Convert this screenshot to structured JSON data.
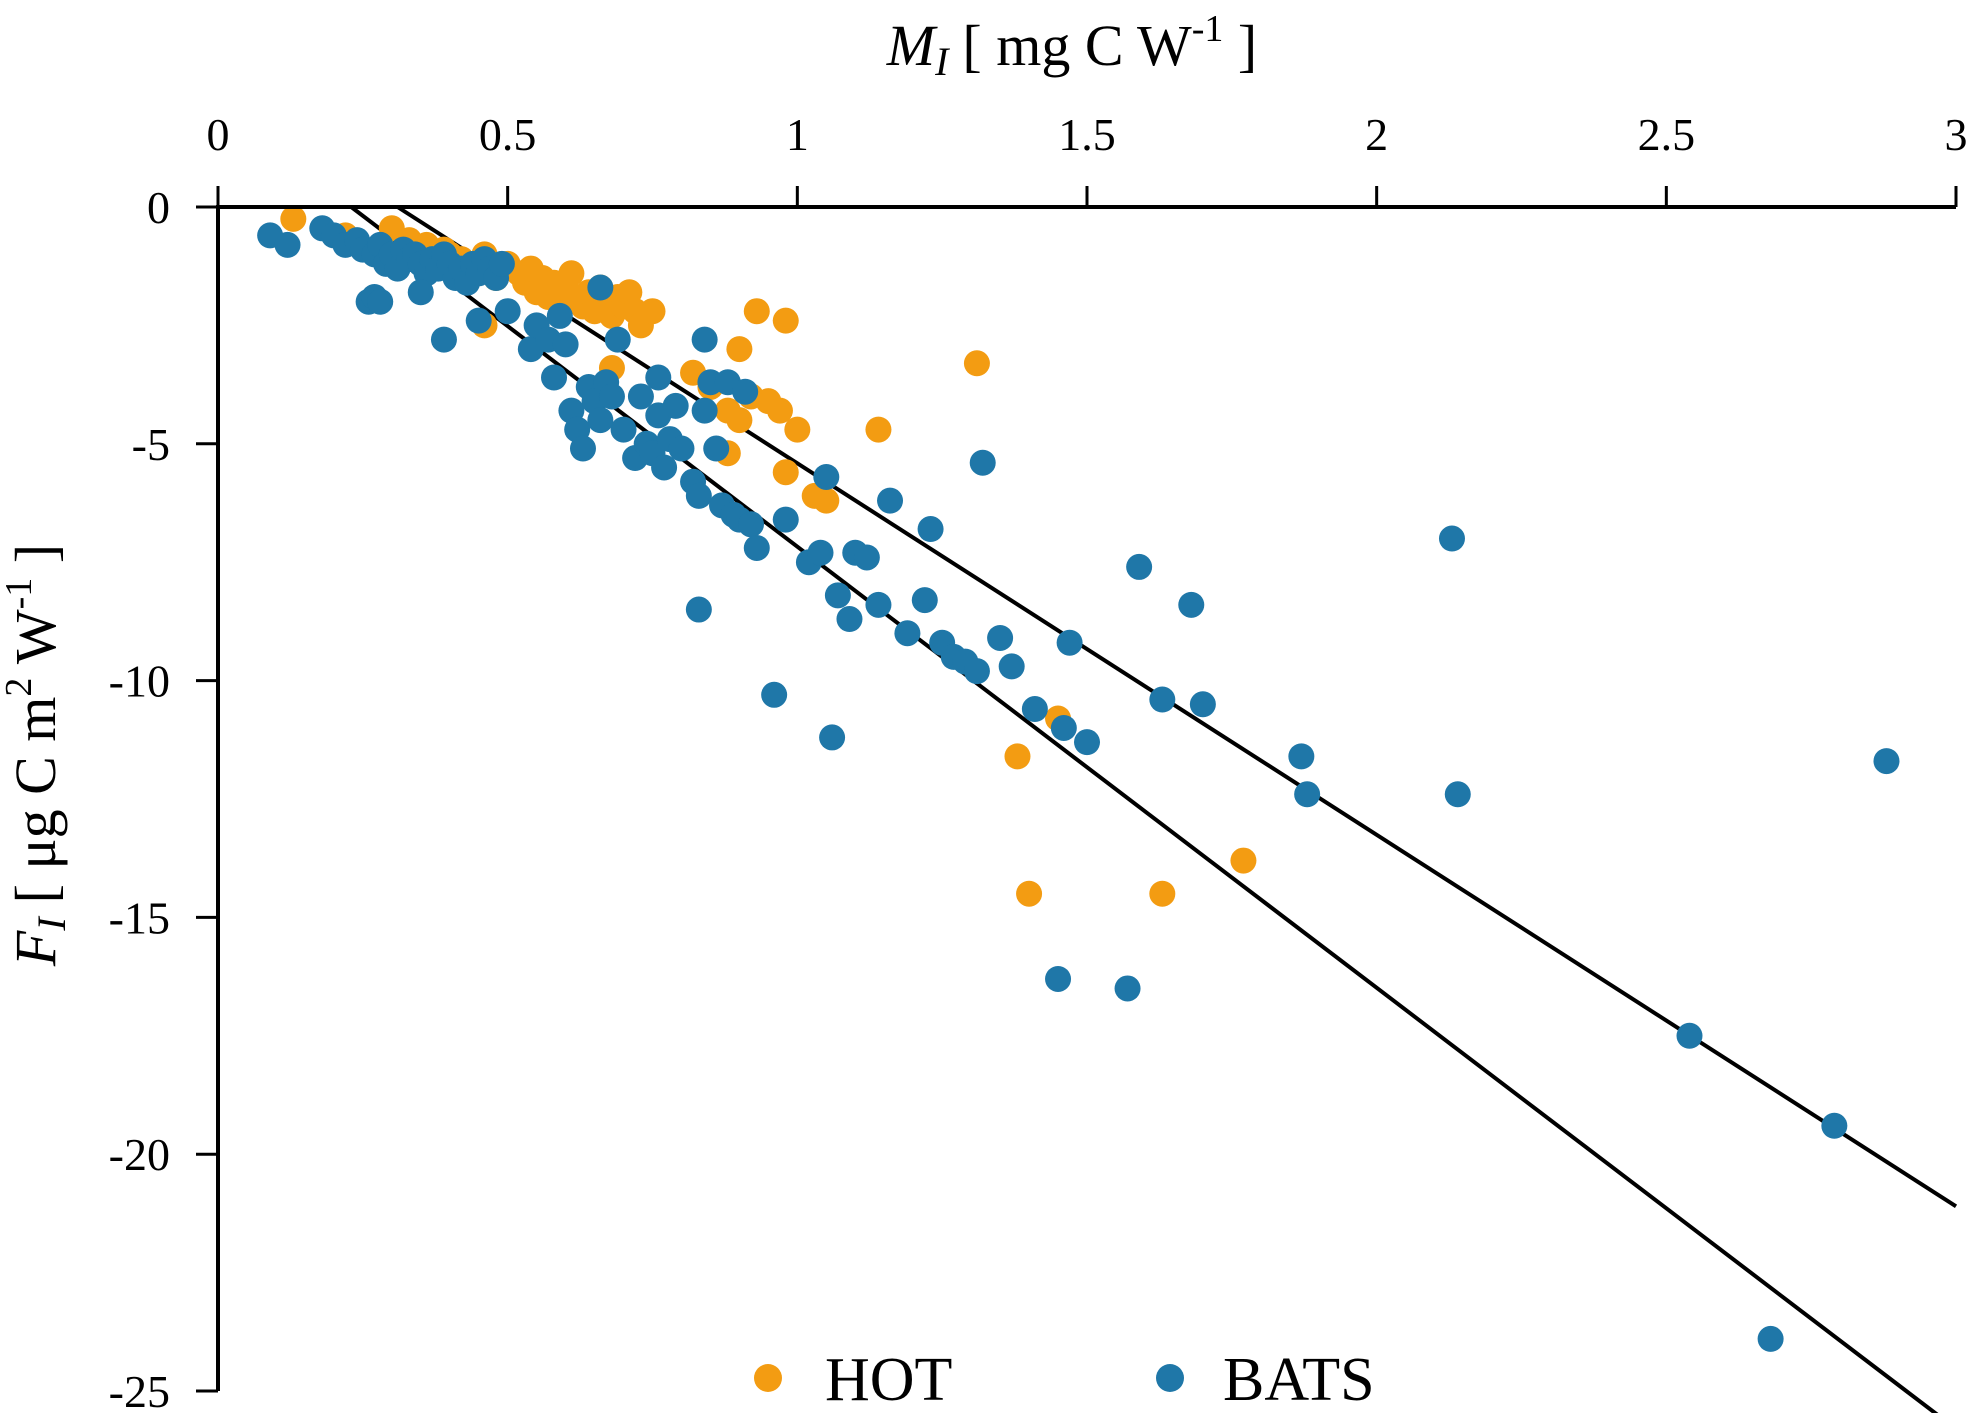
{
  "chart_data": {
    "type": "scatter",
    "xlabel": {
      "main": "M",
      "sub": "I",
      "unit_pre": "[ mg C W",
      "unit_sup": "-1",
      "unit_post": " ]"
    },
    "ylabel": {
      "main": "F",
      "sub": "I",
      "unit_pre": "[ μg C m",
      "unit_sup1": "2",
      "unit_mid": " W",
      "unit_sup2": "-1",
      "unit_post": " ]"
    },
    "x_axis_position": "top",
    "xlim": [
      0,
      3
    ],
    "ylim": [
      -25,
      0
    ],
    "x_ticks": [
      0,
      0.5,
      1,
      1.5,
      2,
      2.5,
      3
    ],
    "x_tick_labels": [
      "0",
      "0.5",
      "1",
      "1.5",
      "2",
      "2.5",
      "3"
    ],
    "y_ticks": [
      0,
      -5,
      -10,
      -15,
      -20,
      -25
    ],
    "y_tick_labels": [
      "0",
      "-5",
      "-10",
      "-15",
      "-20",
      "-25"
    ],
    "legend_position": "bottom-center",
    "colors": {
      "HOT": "#F39C12",
      "BATS": "#1F77A8"
    },
    "series": [
      {
        "name": "HOT",
        "color": "#F39C12",
        "points": [
          [
            0.13,
            -0.25
          ],
          [
            0.22,
            -0.6
          ],
          [
            0.3,
            -0.45
          ],
          [
            0.33,
            -0.7
          ],
          [
            0.36,
            -0.8
          ],
          [
            0.39,
            -0.9
          ],
          [
            0.4,
            -1.0
          ],
          [
            0.42,
            -1.1
          ],
          [
            0.44,
            -1.2
          ],
          [
            0.46,
            -1.0
          ],
          [
            0.47,
            -1.3
          ],
          [
            0.48,
            -1.5
          ],
          [
            0.5,
            -1.2
          ],
          [
            0.52,
            -1.4
          ],
          [
            0.53,
            -1.6
          ],
          [
            0.54,
            -1.3
          ],
          [
            0.55,
            -1.8
          ],
          [
            0.56,
            -1.5
          ],
          [
            0.57,
            -1.9
          ],
          [
            0.58,
            -1.6
          ],
          [
            0.59,
            -2.0
          ],
          [
            0.6,
            -1.7
          ],
          [
            0.61,
            -1.4
          ],
          [
            0.62,
            -1.9
          ],
          [
            0.63,
            -2.1
          ],
          [
            0.64,
            -1.8
          ],
          [
            0.65,
            -2.2
          ],
          [
            0.66,
            -1.7
          ],
          [
            0.67,
            -2.0
          ],
          [
            0.68,
            -2.3
          ],
          [
            0.69,
            -1.9
          ],
          [
            0.7,
            -2.1
          ],
          [
            0.71,
            -1.8
          ],
          [
            0.72,
            -2.2
          ],
          [
            0.73,
            -2.5
          ],
          [
            0.75,
            -2.2
          ],
          [
            0.46,
            -2.5
          ],
          [
            0.68,
            -3.4
          ],
          [
            0.82,
            -3.5
          ],
          [
            0.85,
            -3.8
          ],
          [
            0.88,
            -4.3
          ],
          [
            0.9,
            -4.5
          ],
          [
            0.92,
            -4.0
          ],
          [
            0.95,
            -4.1
          ],
          [
            0.97,
            -4.3
          ],
          [
            1.0,
            -4.7
          ],
          [
            0.98,
            -5.6
          ],
          [
            1.03,
            -6.1
          ],
          [
            1.05,
            -6.2
          ],
          [
            0.93,
            -2.2
          ],
          [
            0.98,
            -2.4
          ],
          [
            0.9,
            -3.0
          ],
          [
            0.88,
            -5.2
          ],
          [
            1.14,
            -4.7
          ],
          [
            1.31,
            -3.3
          ],
          [
            1.38,
            -11.6
          ],
          [
            1.45,
            -10.8
          ],
          [
            1.4,
            -14.5
          ],
          [
            1.63,
            -14.5
          ],
          [
            1.77,
            -13.8
          ]
        ]
      },
      {
        "name": "BATS",
        "color": "#1F77A8",
        "points": [
          [
            0.09,
            -0.6
          ],
          [
            0.12,
            -0.8
          ],
          [
            0.18,
            -0.45
          ],
          [
            0.2,
            -0.6
          ],
          [
            0.22,
            -0.8
          ],
          [
            0.24,
            -0.7
          ],
          [
            0.25,
            -0.9
          ],
          [
            0.27,
            -1.0
          ],
          [
            0.28,
            -0.8
          ],
          [
            0.29,
            -1.2
          ],
          [
            0.3,
            -1.0
          ],
          [
            0.31,
            -1.3
          ],
          [
            0.32,
            -0.9
          ],
          [
            0.33,
            -1.1
          ],
          [
            0.34,
            -1.0
          ],
          [
            0.35,
            -1.2
          ],
          [
            0.36,
            -1.4
          ],
          [
            0.37,
            -1.1
          ],
          [
            0.38,
            -1.3
          ],
          [
            0.39,
            -1.0
          ],
          [
            0.4,
            -1.2
          ],
          [
            0.41,
            -1.5
          ],
          [
            0.42,
            -1.3
          ],
          [
            0.43,
            -1.6
          ],
          [
            0.44,
            -1.2
          ],
          [
            0.45,
            -1.4
          ],
          [
            0.46,
            -1.1
          ],
          [
            0.47,
            -1.3
          ],
          [
            0.48,
            -1.5
          ],
          [
            0.49,
            -1.2
          ],
          [
            0.26,
            -2.0
          ],
          [
            0.27,
            -1.9
          ],
          [
            0.28,
            -2.0
          ],
          [
            0.35,
            -1.8
          ],
          [
            0.39,
            -2.8
          ],
          [
            0.45,
            -2.4
          ],
          [
            0.5,
            -2.2
          ],
          [
            0.54,
            -3.0
          ],
          [
            0.55,
            -2.5
          ],
          [
            0.57,
            -2.8
          ],
          [
            0.59,
            -2.3
          ],
          [
            0.6,
            -2.9
          ],
          [
            0.58,
            -3.6
          ],
          [
            0.61,
            -4.3
          ],
          [
            0.62,
            -4.7
          ],
          [
            0.63,
            -5.1
          ],
          [
            0.64,
            -3.8
          ],
          [
            0.65,
            -4.1
          ],
          [
            0.66,
            -4.5
          ],
          [
            0.67,
            -3.7
          ],
          [
            0.68,
            -4.0
          ],
          [
            0.69,
            -2.8
          ],
          [
            0.7,
            -4.7
          ],
          [
            0.72,
            -5.3
          ],
          [
            0.73,
            -4.0
          ],
          [
            0.74,
            -5.0
          ],
          [
            0.75,
            -5.2
          ],
          [
            0.76,
            -4.4
          ],
          [
            0.77,
            -5.5
          ],
          [
            0.78,
            -4.9
          ],
          [
            0.79,
            -4.2
          ],
          [
            0.8,
            -5.1
          ],
          [
            0.82,
            -5.8
          ],
          [
            0.83,
            -6.1
          ],
          [
            0.84,
            -4.3
          ],
          [
            0.85,
            -3.7
          ],
          [
            0.86,
            -5.1
          ],
          [
            0.87,
            -6.3
          ],
          [
            0.88,
            -3.7
          ],
          [
            0.89,
            -6.5
          ],
          [
            0.9,
            -6.6
          ],
          [
            0.91,
            -3.9
          ],
          [
            0.92,
            -6.7
          ],
          [
            0.93,
            -7.2
          ],
          [
            0.84,
            -2.8
          ],
          [
            0.76,
            -3.6
          ],
          [
            0.66,
            -1.7
          ],
          [
            0.83,
            -8.5
          ],
          [
            0.96,
            -10.3
          ],
          [
            0.98,
            -6.6
          ],
          [
            1.02,
            -7.5
          ],
          [
            1.04,
            -7.3
          ],
          [
            1.05,
            -5.7
          ],
          [
            1.06,
            -11.2
          ],
          [
            1.07,
            -8.2
          ],
          [
            1.09,
            -8.7
          ],
          [
            1.1,
            -7.3
          ],
          [
            1.12,
            -7.4
          ],
          [
            1.14,
            -8.4
          ],
          [
            1.16,
            -6.2
          ],
          [
            1.19,
            -9.0
          ],
          [
            1.22,
            -8.3
          ],
          [
            1.23,
            -6.8
          ],
          [
            1.25,
            -9.2
          ],
          [
            1.27,
            -9.5
          ],
          [
            1.29,
            -9.6
          ],
          [
            1.31,
            -9.8
          ],
          [
            1.32,
            -5.4
          ],
          [
            1.35,
            -9.1
          ],
          [
            1.37,
            -9.7
          ],
          [
            1.41,
            -10.6
          ],
          [
            1.46,
            -11.0
          ],
          [
            1.47,
            -9.2
          ],
          [
            1.5,
            -11.3
          ],
          [
            1.45,
            -16.3
          ],
          [
            1.57,
            -16.5
          ],
          [
            1.59,
            -7.6
          ],
          [
            1.63,
            -10.4
          ],
          [
            1.68,
            -8.4
          ],
          [
            1.7,
            -10.5
          ],
          [
            1.87,
            -11.6
          ],
          [
            1.88,
            -12.4
          ],
          [
            2.13,
            -7.0
          ],
          [
            2.14,
            -12.4
          ],
          [
            2.54,
            -17.5
          ],
          [
            2.68,
            -23.9
          ],
          [
            2.79,
            -19.4
          ],
          [
            2.88,
            -11.7
          ]
        ]
      }
    ],
    "fit_lines": [
      {
        "x1": 0.31,
        "y1": 0.0,
        "x2": 3.0,
        "y2": -21.1
      },
      {
        "x1": 0.23,
        "y1": 0.0,
        "x2": 3.0,
        "y2": -25.8
      }
    ]
  }
}
